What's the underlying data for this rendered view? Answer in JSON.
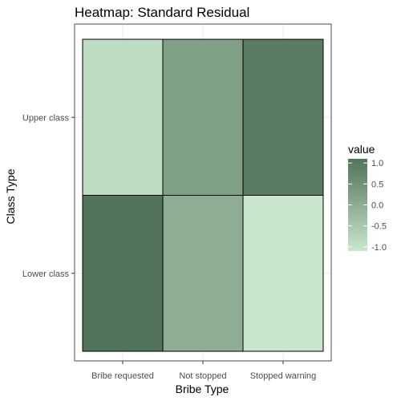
{
  "chart_data": {
    "type": "heatmap",
    "title": "Heatmap: Standard Residual",
    "xlabel": "Bribe Type",
    "ylabel": "Class Type",
    "x_categories": [
      "Bribe requested",
      "Not stopped",
      "Stopped warning"
    ],
    "y_categories": [
      "Lower class",
      "Upper class"
    ],
    "values": [
      [
        1.1,
        0.0,
        -1.1
      ],
      [
        -0.9,
        0.25,
        0.95
      ]
    ],
    "color_scale": {
      "low": "#c9e6cc",
      "high": "#52745a",
      "range": [
        -1.1,
        1.1
      ]
    },
    "legend": {
      "title": "value",
      "ticks": [
        1.0,
        0.5,
        0.0,
        -0.5,
        -1.0
      ],
      "tick_labels": [
        "1.0",
        "0.5",
        "0.0",
        "-0.5",
        "-1.0"
      ],
      "position": "right"
    },
    "grid": true,
    "panel_border_color": "#4d4d4d",
    "grid_color": "#ebebeb",
    "cell_border_color": "#000000"
  }
}
